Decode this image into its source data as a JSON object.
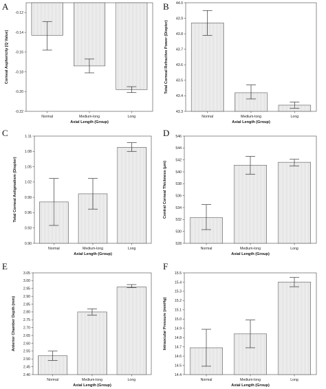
{
  "chart_data": [
    {
      "type": "bar",
      "letter": "A",
      "categories": [
        "Normal",
        "Medium-long",
        "Long"
      ],
      "values": [
        -0.143,
        -0.174,
        -0.198
      ],
      "error_low": [
        -0.158,
        -0.181,
        -0.201
      ],
      "error_high": [
        -0.129,
        -0.167,
        -0.195
      ],
      "xlabel": "Axial Length (Group)",
      "ylabel": "Corneal Asphericity [Q Value]",
      "ylim": [
        -0.22,
        -0.11
      ],
      "yticks": [
        "-0.12",
        "-0.14",
        "-0.16",
        "-0.18",
        "-0.20",
        "-0.22"
      ],
      "ytick_values": [
        -0.12,
        -0.14,
        -0.16,
        -0.18,
        -0.2,
        -0.22
      ],
      "baseline": "top"
    },
    {
      "type": "bar",
      "letter": "B",
      "categories": [
        "Normal",
        "Medium-long",
        "Long"
      ],
      "values": [
        43.87,
        43.42,
        43.34
      ],
      "error_low": [
        43.79,
        43.38,
        43.32
      ],
      "error_high": [
        43.95,
        43.47,
        43.36
      ],
      "xlabel": "Axial Length (Group)",
      "ylabel": "Total Corneal Refractive Power (Diopter)",
      "ylim": [
        43.3,
        44.0
      ],
      "yticks": [
        "44.0",
        "43.9",
        "43.8",
        "43.7",
        "43.6",
        "43.5",
        "43.4",
        "43.3"
      ],
      "ytick_values": [
        44.0,
        43.9,
        43.8,
        43.7,
        43.6,
        43.5,
        43.4,
        43.3
      ],
      "baseline": "bottom"
    },
    {
      "type": "bar",
      "letter": "C",
      "categories": [
        "Normal",
        "Medium-long",
        "Long"
      ],
      "values": [
        0.981,
        0.997,
        1.088
      ],
      "error_low": [
        0.935,
        0.967,
        1.08
      ],
      "error_high": [
        1.027,
        1.027,
        1.097
      ],
      "xlabel": "Axial Length (Group)",
      "ylabel": "Total Corneal Astigmatism (Diopter)",
      "ylim": [
        0.9,
        1.11
      ],
      "yticks": [
        "1.11",
        "1.08",
        "1.05",
        "1.02",
        "0.99",
        "0.96",
        "0.93",
        "0.90"
      ],
      "ytick_values": [
        1.11,
        1.08,
        1.05,
        1.02,
        0.99,
        0.96,
        0.93,
        0.9
      ],
      "baseline": "bottom"
    },
    {
      "type": "bar",
      "letter": "D",
      "categories": [
        "Normal",
        "Medium-long",
        "Long"
      ],
      "values": [
        532.3,
        541.1,
        541.6
      ],
      "error_low": [
        530.3,
        539.6,
        541.0
      ],
      "error_high": [
        534.5,
        542.6,
        542.1
      ],
      "xlabel": "Axial Length (Group)",
      "ylabel": "Central Corneal Thickness (μm)",
      "ylim": [
        528,
        546
      ],
      "yticks": [
        "546",
        "544",
        "542",
        "540",
        "538",
        "536",
        "534",
        "532",
        "530",
        "528"
      ],
      "ytick_values": [
        546,
        544,
        542,
        540,
        538,
        536,
        534,
        532,
        530,
        528
      ],
      "baseline": "bottom"
    },
    {
      "type": "bar",
      "letter": "E",
      "categories": [
        "Normal",
        "Medium-long",
        "Long"
      ],
      "values": [
        2.52,
        2.8,
        2.96
      ],
      "error_low": [
        2.49,
        2.78,
        2.955
      ],
      "error_high": [
        2.55,
        2.82,
        2.975
      ],
      "xlabel": "Axial Length (Group)",
      "ylabel": "Anterior Chamber Depth (mm)",
      "ylim": [
        2.4,
        3.05
      ],
      "yticks": [
        "3.05",
        "3.00",
        "2.95",
        "2.90",
        "2.85",
        "2.80",
        "2.75",
        "2.70",
        "2.65",
        "2.60",
        "2.55",
        "2.50",
        "2.45",
        "2.40"
      ],
      "ytick_values": [
        3.05,
        3.0,
        2.95,
        2.9,
        2.85,
        2.8,
        2.75,
        2.7,
        2.65,
        2.6,
        2.55,
        2.5,
        2.45,
        2.4
      ],
      "baseline": "bottom"
    },
    {
      "type": "bar",
      "letter": "F",
      "categories": [
        "Normal",
        "Medium-long",
        "Long"
      ],
      "values": [
        14.69,
        14.84,
        15.4
      ],
      "error_low": [
        14.49,
        14.69,
        15.35
      ],
      "error_high": [
        14.89,
        14.99,
        15.45
      ],
      "xlabel": "Axial Length (Group)",
      "ylabel": "Intraocular Pressure (mmHg)",
      "ylim": [
        14.4,
        15.5
      ],
      "yticks": [
        "15.5",
        "15.4",
        "15.3",
        "15.2",
        "15.1",
        "15.0",
        "14.9",
        "14.8",
        "14.7",
        "14.6",
        "14.5",
        "14.4"
      ],
      "ytick_values": [
        15.5,
        15.4,
        15.3,
        15.2,
        15.1,
        15.0,
        14.9,
        14.8,
        14.7,
        14.6,
        14.5,
        14.4
      ],
      "baseline": "bottom"
    }
  ]
}
